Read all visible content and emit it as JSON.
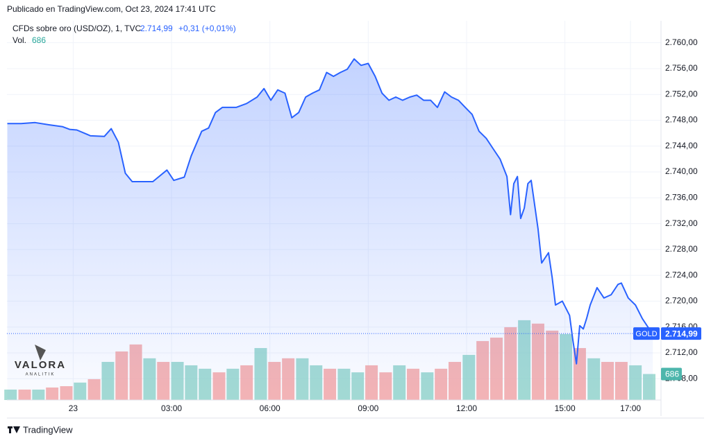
{
  "header": "Publicado en TradingView.com, Oct 23, 2024 17:41 UTC",
  "legend": {
    "symbol": "CFDs sobre oro (USD/OZ), 1, TVC",
    "change": "+0,31 (+0,01%)"
  },
  "watermark": {
    "name": "VALORA",
    "tagline": "ANALITIK"
  },
  "footer": "TradingView",
  "chart_data": {
    "type": "line",
    "color": "#2962ff",
    "ticker": "GOLD",
    "last_price": {
      "value": 2714.99,
      "label": "2.714,99"
    },
    "xlim": [
      -2.02,
      17.93
    ],
    "ylim": [
      2704.7,
      2763.4
    ],
    "xticks": [
      {
        "value": 0,
        "label": "23"
      },
      {
        "value": 3,
        "label": "03:00"
      },
      {
        "value": 6,
        "label": "06:00"
      },
      {
        "value": 9,
        "label": "09:00"
      },
      {
        "value": 12,
        "label": "12:00"
      },
      {
        "value": 15,
        "label": "15:00"
      },
      {
        "value": 17,
        "label": "17:00"
      }
    ],
    "yticks": [
      {
        "value": 2708,
        "label": "2.708,00"
      },
      {
        "value": 2712,
        "label": "2.712,00"
      },
      {
        "value": 2716,
        "label": "2.716,00"
      },
      {
        "value": 2720,
        "label": "2.720,00"
      },
      {
        "value": 2724,
        "label": "2.724,00"
      },
      {
        "value": 2728,
        "label": "2.728,00"
      },
      {
        "value": 2732,
        "label": "2.732,00"
      },
      {
        "value": 2736,
        "label": "2.736,00"
      },
      {
        "value": 2740,
        "label": "2.740,00"
      },
      {
        "value": 2744,
        "label": "2.744,00"
      },
      {
        "value": 2748,
        "label": "2.748,00"
      },
      {
        "value": 2752,
        "label": "2.752,00"
      },
      {
        "value": 2756,
        "label": "2.756,00"
      },
      {
        "value": 2760,
        "label": "2.760,00"
      }
    ],
    "x": [
      -2.01,
      -1.59,
      -1.16,
      -0.74,
      -0.32,
      -0.11,
      0.11,
      0.53,
      0.95,
      1.16,
      1.38,
      1.59,
      1.8,
      2.01,
      2.43,
      2.86,
      3.07,
      3.39,
      3.6,
      3.92,
      4.13,
      4.34,
      4.55,
      4.97,
      5.29,
      5.61,
      5.82,
      6.03,
      6.24,
      6.46,
      6.67,
      6.88,
      7.09,
      7.3,
      7.51,
      7.73,
      7.94,
      8.15,
      8.36,
      8.57,
      8.78,
      9.0,
      9.21,
      9.42,
      9.63,
      9.84,
      10.05,
      10.27,
      10.48,
      10.69,
      10.9,
      11.11,
      11.33,
      11.54,
      11.75,
      11.96,
      12.17,
      12.38,
      12.6,
      12.81,
      13.02,
      13.23,
      13.34,
      13.44,
      13.55,
      13.65,
      13.76,
      13.87,
      13.97,
      14.18,
      14.29,
      14.5,
      14.61,
      14.71,
      14.92,
      15.14,
      15.24,
      15.35,
      15.45,
      15.56,
      15.66,
      15.77,
      15.98,
      16.19,
      16.41,
      16.62,
      16.72,
      16.93,
      17.15,
      17.36,
      17.57,
      17.68
    ],
    "values": [
      2747.5,
      2747.5,
      2747.65,
      2747.3,
      2747.0,
      2746.6,
      2746.5,
      2745.6,
      2745.5,
      2746.7,
      2744.6,
      2739.8,
      2738.5,
      2738.5,
      2738.5,
      2740.3,
      2738.7,
      2739.2,
      2742.5,
      2746.3,
      2746.8,
      2749.2,
      2750.0,
      2750.0,
      2750.6,
      2751.6,
      2752.9,
      2751.1,
      2752.7,
      2752.2,
      2748.4,
      2749.2,
      2751.6,
      2752.2,
      2752.7,
      2755.4,
      2754.8,
      2755.4,
      2755.9,
      2757.5,
      2756.5,
      2756.8,
      2754.8,
      2752.2,
      2751.1,
      2751.6,
      2751.1,
      2751.6,
      2751.9,
      2751.1,
      2751.1,
      2750.0,
      2752.4,
      2751.6,
      2751.1,
      2750.0,
      2748.9,
      2746.3,
      2745.2,
      2743.6,
      2742.0,
      2739.3,
      2733.4,
      2738.2,
      2739.3,
      2732.8,
      2734.4,
      2738.2,
      2738.7,
      2731.2,
      2725.9,
      2727.5,
      2723.7,
      2719.4,
      2720.0,
      2717.8,
      2714.0,
      2710.3,
      2716.2,
      2715.7,
      2717.3,
      2719.4,
      2722.1,
      2720.5,
      2721.0,
      2722.6,
      2722.8,
      2720.5,
      2719.4,
      2717.3,
      2715.7,
      2714.99
    ],
    "volume": {
      "name": "Vol.",
      "y2lim": [
        0,
        10000
      ],
      "x": [
        -1.91,
        -1.48,
        -1.06,
        -0.64,
        -0.21,
        0.21,
        0.64,
        1.06,
        1.48,
        1.91,
        2.33,
        2.75,
        3.18,
        3.6,
        4.02,
        4.45,
        4.87,
        5.29,
        5.72,
        6.14,
        6.56,
        6.99,
        7.41,
        7.83,
        8.26,
        8.68,
        9.1,
        9.53,
        9.95,
        10.37,
        10.8,
        11.22,
        11.64,
        12.07,
        12.49,
        12.91,
        13.34,
        13.76,
        14.18,
        14.61,
        15.03,
        15.45,
        15.88,
        16.3,
        16.72,
        17.15,
        17.57
      ],
      "values": [
        275,
        275,
        275,
        330,
        365,
        460,
        550,
        1005,
        1280,
        1465,
        1100,
        1005,
        1005,
        915,
        825,
        730,
        825,
        915,
        1370,
        1005,
        1100,
        1100,
        915,
        825,
        825,
        730,
        915,
        730,
        915,
        825,
        730,
        825,
        1005,
        1190,
        1555,
        1645,
        1920,
        2105,
        2015,
        1830,
        1740,
        1370,
        1100,
        1005,
        1005,
        915,
        686
      ],
      "colors": [
        "#8fd3c8",
        "#f5a3a1",
        "#8fd3c8",
        "#f5a3a1",
        "#f5a3a1",
        "#8fd3c8",
        "#f5a3a1",
        "#8fd3c8",
        "#f5a3a1",
        "#f5a3a1",
        "#8fd3c8",
        "#f5a3a1",
        "#8fd3c8",
        "#8fd3c8",
        "#8fd3c8",
        "#f5a3a1",
        "#8fd3c8",
        "#f5a3a1",
        "#8fd3c8",
        "#f5a3a1",
        "#f5a3a1",
        "#8fd3c8",
        "#8fd3c8",
        "#f5a3a1",
        "#8fd3c8",
        "#8fd3c8",
        "#f5a3a1",
        "#f5a3a1",
        "#8fd3c8",
        "#f5a3a1",
        "#8fd3c8",
        "#f5a3a1",
        "#f5a3a1",
        "#8fd3c8",
        "#f5a3a1",
        "#f5a3a1",
        "#f5a3a1",
        "#8fd3c8",
        "#f5a3a1",
        "#f5a3a1",
        "#8fd3c8",
        "#f5a3a1",
        "#8fd3c8",
        "#f5a3a1",
        "#f5a3a1",
        "#8fd3c8",
        "#8fd3c8"
      ]
    }
  }
}
